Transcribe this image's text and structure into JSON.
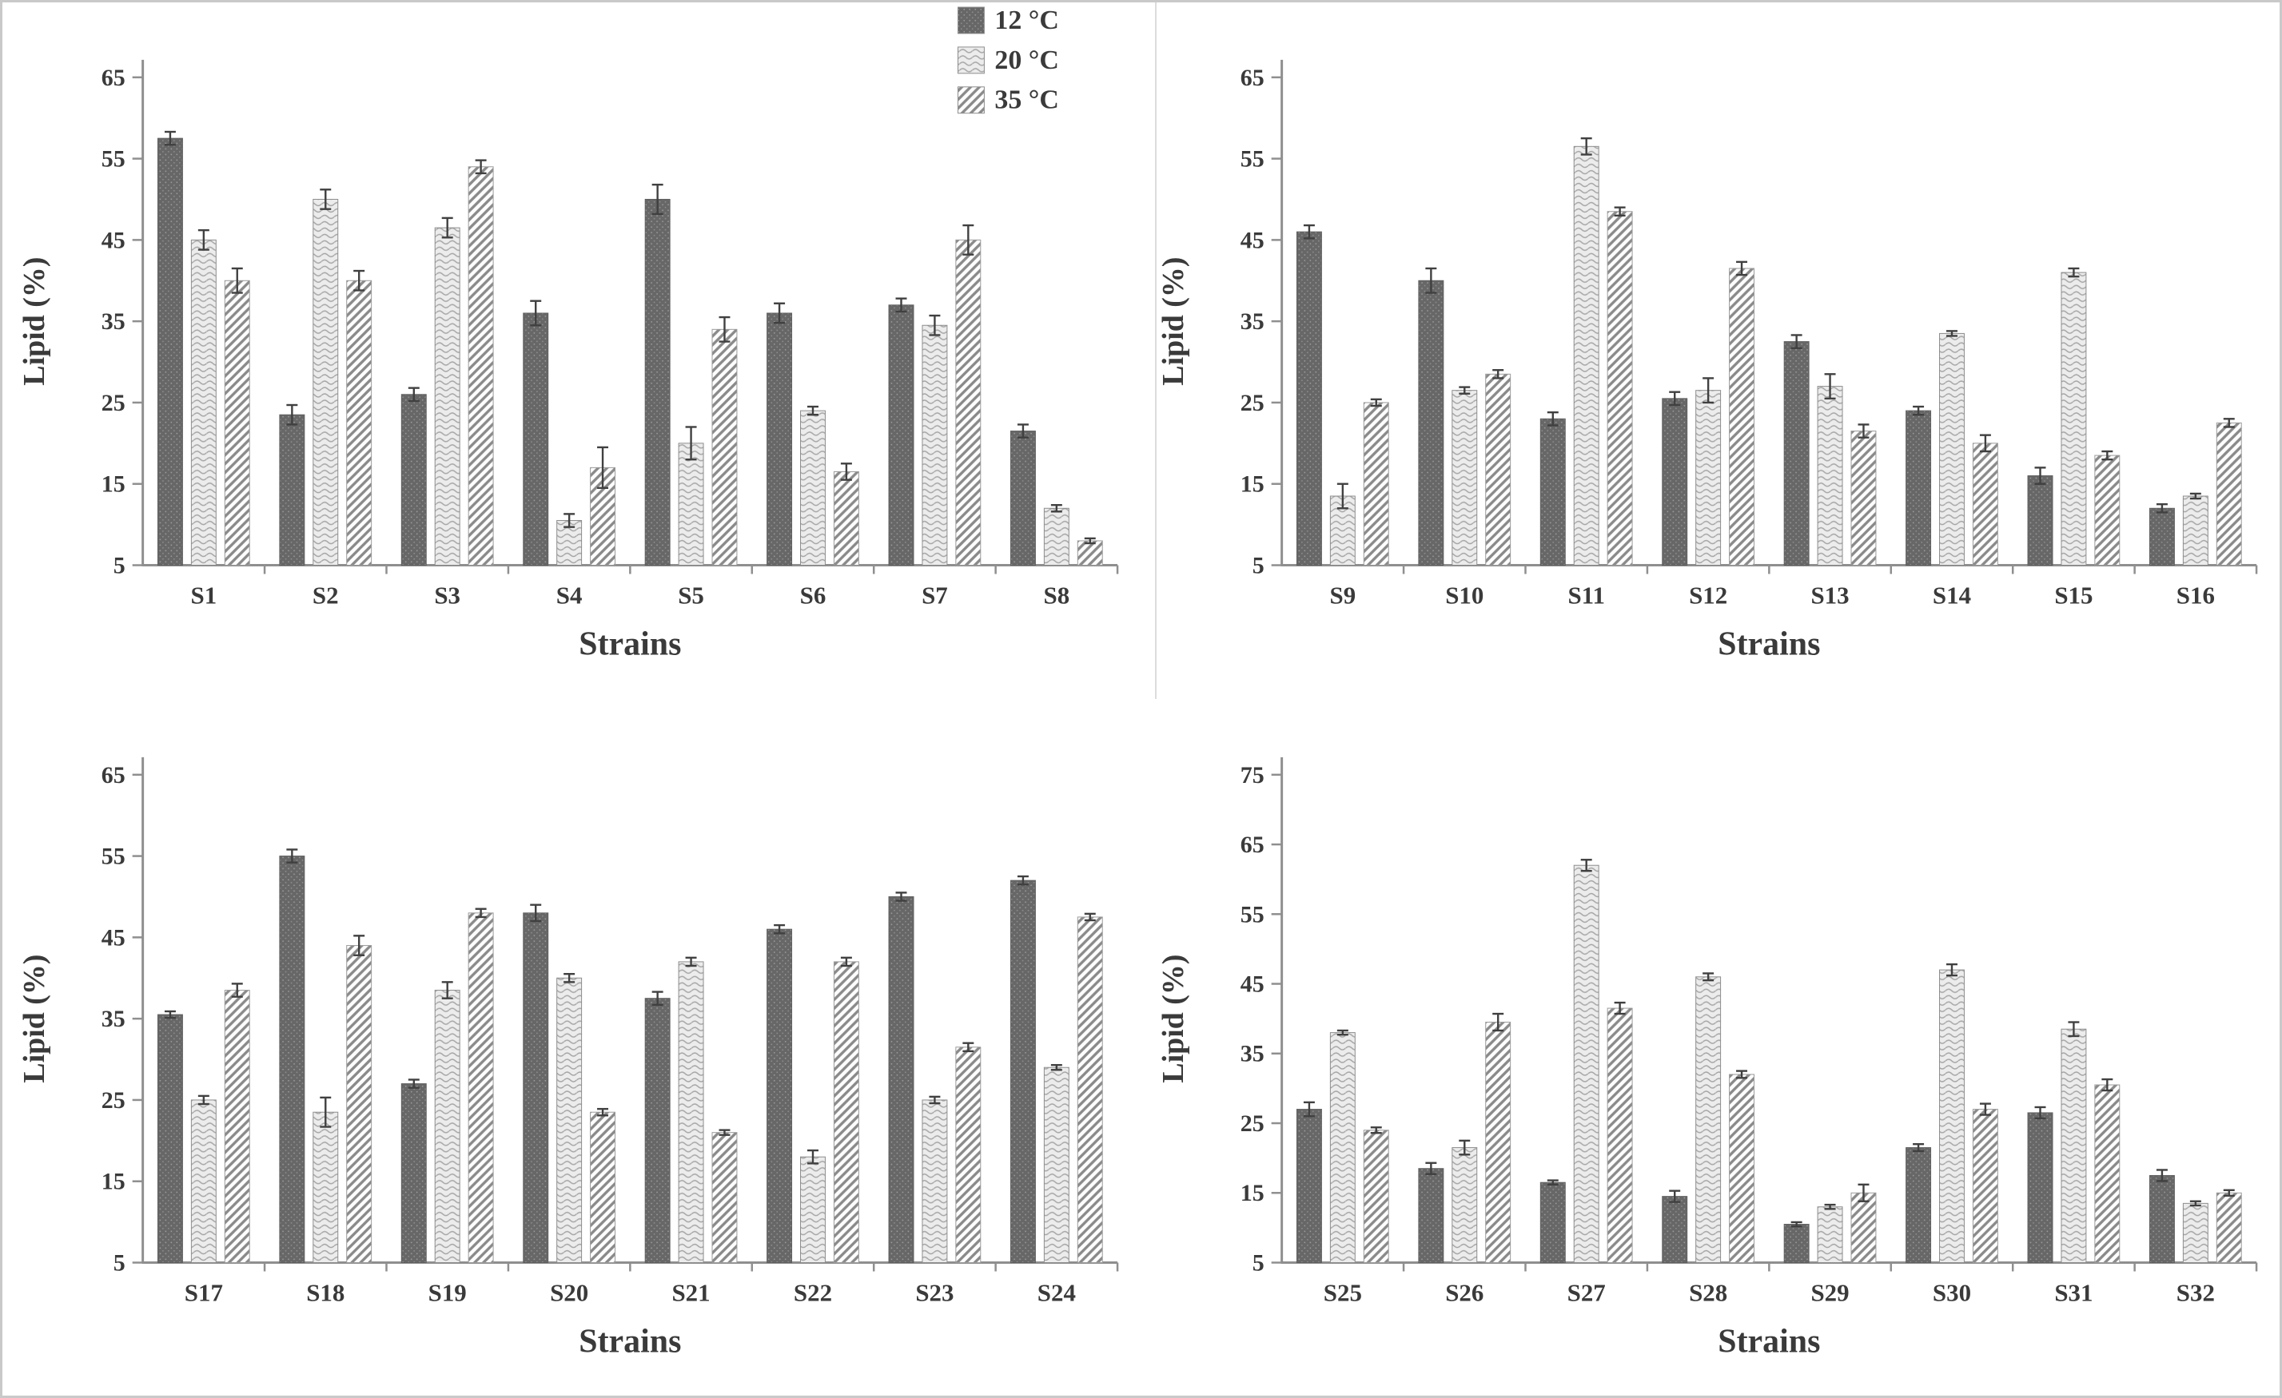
{
  "figure": {
    "background": "#ffffff",
    "border_color": "#c9c9c9",
    "axis_color": "#8f8f8f",
    "text_color": "#3a3a3a",
    "error_bar_color": "#404040"
  },
  "legend": {
    "position": "top-right-of-first-panel",
    "items": [
      {
        "label": "12 °C",
        "series_key": "t12",
        "swatch": "dark-speckled"
      },
      {
        "label": "20 °C",
        "series_key": "t20",
        "swatch": "light-wavy"
      },
      {
        "label": "35 °C",
        "series_key": "t35",
        "swatch": "diagonal-hatch"
      }
    ]
  },
  "series_styles": {
    "t12": {
      "name": "12 °C",
      "base_color": "#676767",
      "dot_color": "#ffffff",
      "edge_color": "#5f5f5f",
      "pattern": "speckle"
    },
    "t20": {
      "name": "20 °C",
      "base_color": "#ececec",
      "line_color": "#a6a6a6",
      "edge_color": "#8d8d8d",
      "pattern": "wave"
    },
    "t35": {
      "name": "35 °C",
      "base_color": "#fdfdfd",
      "line_color": "#8a8a8a",
      "edge_color": "#9b9b9b",
      "pattern": "diagonal"
    }
  },
  "chart_data": [
    {
      "type": "bar",
      "panel": "top-left",
      "xlabel": "Strains",
      "ylabel": "Lipid (%)",
      "ylim": [
        5,
        65
      ],
      "yticks": [
        5,
        15,
        25,
        35,
        45,
        55,
        65
      ],
      "grid": false,
      "legend_visible": true,
      "categories": [
        "S1",
        "S2",
        "S3",
        "S4",
        "S5",
        "S6",
        "S7",
        "S8"
      ],
      "series": [
        {
          "name": "12 °C",
          "key": "t12",
          "values": [
            57.5,
            23.5,
            26,
            36,
            50,
            36,
            37,
            21.5
          ],
          "errors": [
            0.8,
            1.2,
            0.8,
            1.5,
            1.8,
            1.2,
            0.8,
            0.8
          ]
        },
        {
          "name": "20 °C",
          "key": "t20",
          "values": [
            45,
            50,
            46.5,
            10.5,
            20,
            24,
            34.5,
            12
          ],
          "errors": [
            1.2,
            1.2,
            1.2,
            0.8,
            2.0,
            0.5,
            1.2,
            0.4
          ]
        },
        {
          "name": "35 °C",
          "key": "t35",
          "values": [
            40,
            40,
            54,
            17,
            34,
            16.5,
            45,
            8
          ],
          "errors": [
            1.5,
            1.2,
            0.8,
            2.5,
            1.5,
            1.0,
            1.8,
            0.3
          ]
        }
      ]
    },
    {
      "type": "bar",
      "panel": "top-right",
      "xlabel": "Strains",
      "ylabel": "Lipid (%)",
      "ylim": [
        5,
        65
      ],
      "yticks": [
        5,
        15,
        25,
        35,
        45,
        55,
        65
      ],
      "grid": false,
      "legend_visible": false,
      "categories": [
        "S9",
        "S10",
        "S11",
        "S12",
        "S13",
        "S14",
        "S15",
        "S16"
      ],
      "series": [
        {
          "name": "12 °C",
          "key": "t12",
          "values": [
            46,
            40,
            23,
            25.5,
            32.5,
            24,
            16,
            12
          ],
          "errors": [
            0.8,
            1.5,
            0.8,
            0.8,
            0.8,
            0.5,
            1.0,
            0.5
          ]
        },
        {
          "name": "20 °C",
          "key": "t20",
          "values": [
            13.5,
            26.5,
            56.5,
            26.5,
            27,
            33.5,
            41,
            13.5
          ],
          "errors": [
            1.5,
            0.4,
            1.0,
            1.5,
            1.5,
            0.3,
            0.5,
            0.3
          ]
        },
        {
          "name": "35 °C",
          "key": "t35",
          "values": [
            25,
            28.5,
            48.5,
            41.5,
            21.5,
            20,
            18.5,
            22.5
          ],
          "errors": [
            0.4,
            0.5,
            0.5,
            0.8,
            0.8,
            1.0,
            0.5,
            0.5
          ]
        }
      ]
    },
    {
      "type": "bar",
      "panel": "bottom-left",
      "xlabel": "Strains",
      "ylabel": "Lipid (%)",
      "ylim": [
        5,
        65
      ],
      "yticks": [
        5,
        15,
        25,
        35,
        45,
        55,
        65
      ],
      "grid": false,
      "legend_visible": false,
      "categories": [
        "S17",
        "S18",
        "S19",
        "S20",
        "S21",
        "S22",
        "S23",
        "S24"
      ],
      "series": [
        {
          "name": "12 °C",
          "key": "t12",
          "values": [
            35.5,
            55,
            27,
            48,
            37.5,
            46,
            50,
            52
          ],
          "errors": [
            0.4,
            0.8,
            0.5,
            1.0,
            0.8,
            0.5,
            0.5,
            0.5
          ]
        },
        {
          "name": "20 °C",
          "key": "t20",
          "values": [
            25,
            23.5,
            38.5,
            40,
            42,
            18,
            25,
            29
          ],
          "errors": [
            0.5,
            1.8,
            1.0,
            0.5,
            0.5,
            0.8,
            0.4,
            0.3
          ]
        },
        {
          "name": "35 °C",
          "key": "t35",
          "values": [
            38.5,
            44,
            48,
            23.5,
            21,
            42,
            31.5,
            47.5
          ],
          "errors": [
            0.8,
            1.2,
            0.5,
            0.4,
            0.3,
            0.5,
            0.5,
            0.4
          ]
        }
      ]
    },
    {
      "type": "bar",
      "panel": "bottom-right",
      "xlabel": "Strains",
      "ylabel": "Lipid (%)",
      "ylim": [
        5,
        75
      ],
      "yticks": [
        5,
        15,
        25,
        35,
        45,
        55,
        65,
        75
      ],
      "grid": false,
      "legend_visible": false,
      "categories": [
        "S25",
        "S26",
        "S27",
        "S28",
        "S29",
        "S30",
        "S31",
        "S32"
      ],
      "series": [
        {
          "name": "12 °C",
          "key": "t12",
          "values": [
            27,
            18.5,
            16.5,
            14.5,
            10.5,
            21.5,
            26.5,
            17.5
          ],
          "errors": [
            1.0,
            0.8,
            0.3,
            0.8,
            0.3,
            0.5,
            0.8,
            0.8
          ]
        },
        {
          "name": "20 °C",
          "key": "t20",
          "values": [
            38,
            21.5,
            62,
            46,
            13,
            47,
            38.5,
            13.5
          ],
          "errors": [
            0.3,
            1.0,
            0.8,
            0.5,
            0.3,
            0.8,
            1.0,
            0.3
          ]
        },
        {
          "name": "35 °C",
          "key": "t35",
          "values": [
            24,
            39.5,
            41.5,
            32,
            15,
            27,
            30.5,
            15
          ],
          "errors": [
            0.4,
            1.2,
            0.8,
            0.5,
            1.2,
            0.8,
            0.8,
            0.4
          ]
        }
      ]
    }
  ]
}
